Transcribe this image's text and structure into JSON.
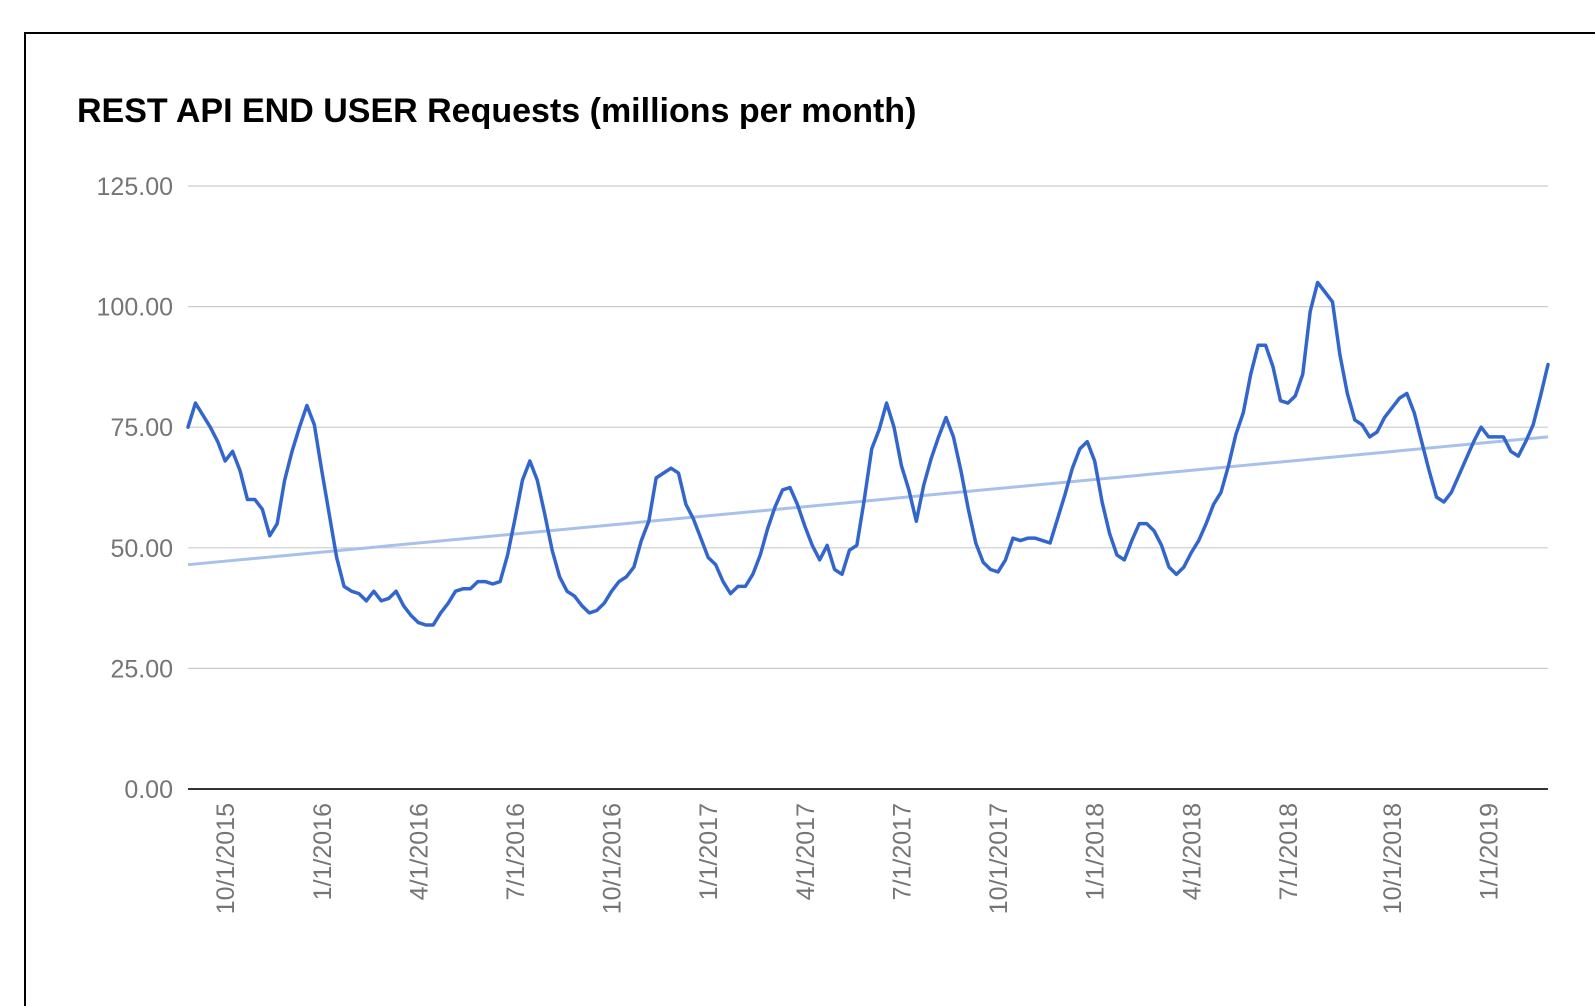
{
  "chart_data": {
    "type": "line",
    "title": "REST API END USER Requests (millions per month)",
    "color": "#3366cc",
    "grid": true,
    "ylim": [
      0,
      125
    ],
    "yticks": [
      {
        "value": 0,
        "label": "0.00"
      },
      {
        "value": 25,
        "label": "25.00"
      },
      {
        "value": 50,
        "label": "50.00"
      },
      {
        "value": 75,
        "label": "75.00"
      },
      {
        "value": 100,
        "label": "100.00"
      },
      {
        "value": 125,
        "label": "125.00"
      }
    ],
    "trendline": {
      "color": "#a8c0ec",
      "start": 46.5,
      "end": 73
    },
    "categories": [
      null,
      null,
      null,
      null,
      null,
      "10/1/2015",
      null,
      null,
      null,
      null,
      null,
      null,
      null,
      null,
      null,
      null,
      null,
      null,
      "1/1/2016",
      null,
      null,
      null,
      null,
      null,
      null,
      null,
      null,
      null,
      null,
      null,
      null,
      "4/1/2016",
      null,
      null,
      null,
      null,
      null,
      null,
      null,
      null,
      null,
      null,
      null,
      null,
      "7/1/2016",
      null,
      null,
      null,
      null,
      null,
      null,
      null,
      null,
      null,
      null,
      null,
      null,
      "10/1/2016",
      null,
      null,
      null,
      null,
      null,
      null,
      null,
      null,
      null,
      null,
      null,
      null,
      "1/1/2017",
      null,
      null,
      null,
      null,
      null,
      null,
      null,
      null,
      null,
      null,
      null,
      null,
      "4/1/2017",
      null,
      null,
      null,
      null,
      null,
      null,
      null,
      null,
      null,
      null,
      null,
      null,
      "7/1/2017",
      null,
      null,
      null,
      null,
      null,
      null,
      null,
      null,
      null,
      null,
      null,
      null,
      "10/1/2017",
      null,
      null,
      null,
      null,
      null,
      null,
      null,
      null,
      null,
      null,
      null,
      null,
      "1/1/2018",
      null,
      null,
      null,
      null,
      null,
      null,
      null,
      null,
      null,
      null,
      null,
      null,
      "4/1/2018",
      null,
      null,
      null,
      null,
      null,
      null,
      null,
      null,
      null,
      null,
      null,
      null,
      "7/1/2018",
      null,
      null,
      null,
      null,
      null,
      null,
      null,
      null,
      null,
      null,
      null,
      null,
      null,
      "10/1/2018",
      null,
      null,
      null,
      null,
      null,
      null,
      null,
      null,
      null,
      null,
      null,
      null,
      "1/1/2019",
      null,
      null,
      null,
      null,
      null,
      null,
      null,
      null
    ],
    "values": [
      75,
      80,
      77.5,
      75,
      72,
      68,
      70,
      66,
      60,
      60,
      58,
      52.5,
      55,
      64,
      70,
      75,
      79.5,
      75.5,
      66,
      57,
      48,
      42,
      41,
      40.5,
      39,
      41,
      39,
      39.5,
      41,
      38,
      36,
      34.5,
      34,
      34,
      36.5,
      38.5,
      41,
      41.5,
      41.5,
      43,
      43,
      42.5,
      43,
      48.5,
      56,
      64,
      68,
      64,
      57,
      49.5,
      44,
      41,
      40,
      38,
      36.5,
      37,
      38.5,
      41,
      43,
      44,
      46,
      51.5,
      55.5,
      64.5,
      65.5,
      66.5,
      65.5,
      59,
      56,
      52,
      48,
      46.5,
      43,
      40.5,
      42,
      42,
      44.5,
      48.5,
      54,
      58.5,
      62,
      62.5,
      59,
      54.5,
      50.5,
      47.5,
      50.5,
      45.5,
      44.5,
      49.5,
      50.5,
      60,
      70.5,
      74.5,
      80,
      75,
      67,
      62,
      55.5,
      63,
      68.5,
      73,
      77,
      73,
      66,
      58,
      51,
      47,
      45.5,
      45,
      47.5,
      52,
      51.5,
      52,
      52,
      51.5,
      51,
      56,
      61,
      66.5,
      70.5,
      72,
      68,
      59.5,
      53,
      48.5,
      47.5,
      51.5,
      55,
      55,
      53.5,
      50.5,
      46,
      44.5,
      46,
      49,
      51.5,
      55,
      59,
      61.5,
      67,
      73.5,
      78,
      86,
      92,
      92,
      87.5,
      80.5,
      80,
      81.5,
      86,
      99,
      105,
      103,
      101,
      90,
      82,
      76.5,
      75.5,
      73,
      74,
      77,
      79,
      81,
      82,
      78,
      72,
      66,
      60.5,
      59.5,
      61.5,
      65,
      68.5,
      72,
      75,
      73,
      73,
      73,
      70,
      69,
      72,
      75.5,
      81.5,
      88
    ]
  }
}
